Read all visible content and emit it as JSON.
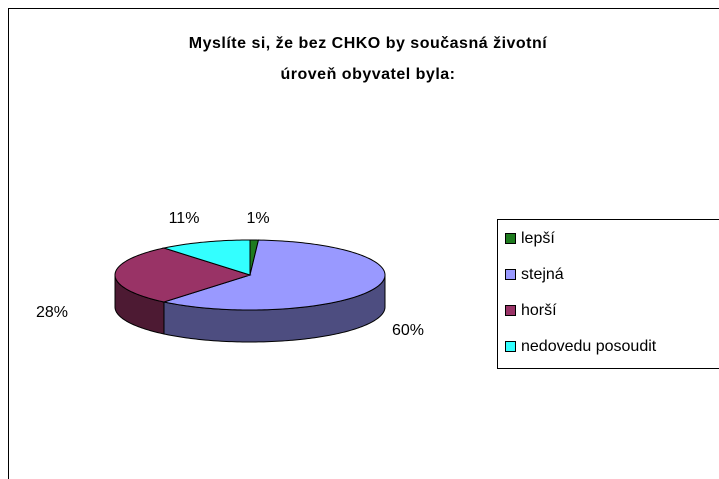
{
  "chart_data": {
    "type": "pie3d",
    "title": [
      "Myslíte si, že bez CHKO by současná životní",
      "úroveň obyvatel byla:"
    ],
    "categories": [
      "lepší",
      "stejná",
      "horší",
      "nedovedu posoudit"
    ],
    "values": [
      1,
      60,
      28,
      11
    ],
    "value_labels": [
      "1%",
      "60%",
      "28%",
      "11%"
    ],
    "colors": [
      "#1e7b1e",
      "#9999ff",
      "#993366",
      "#33ffff"
    ],
    "legend": "right"
  }
}
